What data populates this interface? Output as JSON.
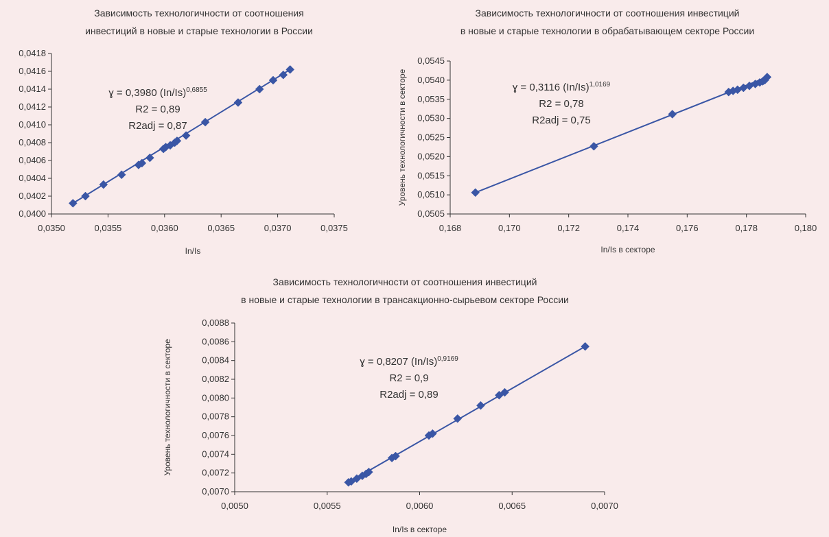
{
  "chart_data": [
    {
      "type": "scatter",
      "title_lines": [
        "Зависимость технологичности от соотношения",
        "инвестиций в новые и старые технологии в России"
      ],
      "xlabel": "In/Is",
      "ylabel": "",
      "xlim": [
        0.035,
        0.0375
      ],
      "ylim": [
        0.04,
        0.0418
      ],
      "x_ticks": [
        "0,0350",
        "0,0355",
        "0,0360",
        "0,0365",
        "0,0370",
        "0,0375"
      ],
      "y_ticks": [
        "0,0400",
        "0,0402",
        "0,0404",
        "0,0406",
        "0,0408",
        "0,0410",
        "0,0412",
        "0,0414",
        "0,0416",
        "0,0418"
      ],
      "trendline": true,
      "equation": {
        "prefix": "ɣ = 0,3980 (In/Is)",
        "exponent": "0,6855",
        "r2": "R2 = 0,89",
        "r2adj": "R2adj = 0,87"
      },
      "marker_color": "#3a56a5",
      "line_color": "#3a56a5",
      "points": [
        [
          0.03519,
          0.04012
        ],
        [
          0.0353,
          0.0402
        ],
        [
          0.03546,
          0.04033
        ],
        [
          0.03562,
          0.04044
        ],
        [
          0.03577,
          0.04055
        ],
        [
          0.0358,
          0.04057
        ],
        [
          0.03587,
          0.04063
        ],
        [
          0.03599,
          0.04073
        ],
        [
          0.03601,
          0.04075
        ],
        [
          0.03605,
          0.04077
        ],
        [
          0.03609,
          0.0408
        ],
        [
          0.03611,
          0.04082
        ],
        [
          0.03619,
          0.04088
        ],
        [
          0.03636,
          0.04103
        ],
        [
          0.03665,
          0.04125
        ],
        [
          0.03684,
          0.0414
        ],
        [
          0.03696,
          0.0415
        ],
        [
          0.03705,
          0.04156
        ],
        [
          0.03711,
          0.04162
        ]
      ]
    },
    {
      "type": "scatter",
      "title_lines": [
        "Зависимость технологичности от соотношения инвестиций",
        "в новые и старые технологии в обрабатывающем секторе России"
      ],
      "xlabel": "In/Is в секторе",
      "ylabel": "Уровень технологичности в секторе",
      "xlim": [
        0.168,
        0.18
      ],
      "ylim": [
        0.0505,
        0.0545
      ],
      "x_ticks": [
        "0,168",
        "0,170",
        "0,172",
        "0,174",
        "0,176",
        "0,178",
        "0,180"
      ],
      "y_ticks": [
        "0,0505",
        "0,0510",
        "0,0515",
        "0,0520",
        "0,0525",
        "0,0530",
        "0,0535",
        "0,0540",
        "0,0545"
      ],
      "trendline": true,
      "equation": {
        "prefix": "ɣ = 0,3116 (In/Is)",
        "exponent": "1,0169",
        "r2": "R2 = 0,78",
        "r2adj": "R2adj = 0,75"
      },
      "marker_color": "#3a56a5",
      "line_color": "#3a56a5",
      "points": [
        [
          0.16885,
          0.05106
        ],
        [
          0.17285,
          0.05227
        ],
        [
          0.1755,
          0.05311
        ],
        [
          0.1774,
          0.05369
        ],
        [
          0.17755,
          0.05372
        ],
        [
          0.1777,
          0.05375
        ],
        [
          0.1779,
          0.0538
        ],
        [
          0.1781,
          0.05385
        ],
        [
          0.1783,
          0.0539
        ],
        [
          0.17845,
          0.05394
        ],
        [
          0.17855,
          0.05397
        ],
        [
          0.17862,
          0.054
        ],
        [
          0.1787,
          0.05408
        ]
      ]
    },
    {
      "type": "scatter",
      "title_lines": [
        "Зависимость технологичности от соотношения инвестиций",
        "в новые и старые технологии в трансакционно-сырьевом секторе России"
      ],
      "xlabel": "In/Is в секторе",
      "ylabel": "Уровень технологичности в секторе",
      "xlim": [
        0.005,
        0.007
      ],
      "ylim": [
        0.007,
        0.0088
      ],
      "x_ticks": [
        "0,0050",
        "0,0055",
        "0,0060",
        "0,0065",
        "0,0070"
      ],
      "y_ticks": [
        "0,0070",
        "0,0072",
        "0,0074",
        "0,0076",
        "0,0078",
        "0,0080",
        "0,0082",
        "0,0084",
        "0,0086",
        "0,0088"
      ],
      "trendline": true,
      "equation": {
        "prefix": "ɣ = 0,8207 (In/Is)",
        "exponent": "0,9169",
        "r2": "R2 = 0,9",
        "r2adj": "R2adj = 0,89"
      },
      "marker_color": "#3a56a5",
      "line_color": "#3a56a5",
      "points": [
        [
          0.005615,
          0.0071
        ],
        [
          0.00563,
          0.00711
        ],
        [
          0.00566,
          0.00714
        ],
        [
          0.00569,
          0.00717
        ],
        [
          0.00571,
          0.00719
        ],
        [
          0.005725,
          0.00721
        ],
        [
          0.00585,
          0.00736
        ],
        [
          0.00587,
          0.00738
        ],
        [
          0.00605,
          0.0076
        ],
        [
          0.00607,
          0.00762
        ],
        [
          0.006205,
          0.00778
        ],
        [
          0.00633,
          0.00792
        ],
        [
          0.00643,
          0.00803
        ],
        [
          0.00646,
          0.00806
        ],
        [
          0.006895,
          0.00855
        ]
      ]
    }
  ]
}
